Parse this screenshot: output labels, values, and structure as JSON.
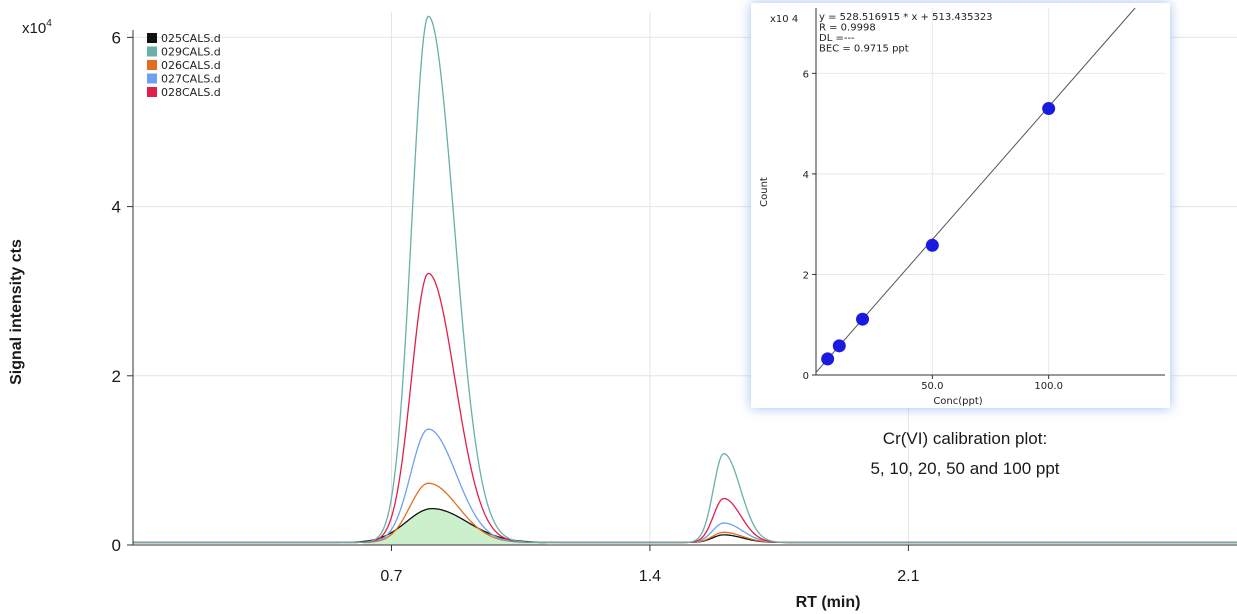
{
  "chart_data": [
    {
      "type": "line",
      "xlabel": "RT (min)",
      "ylabel": "Signal intensity cts",
      "y_multiplier": "x10",
      "y_multiplier_exponent": "4",
      "xlim": [
        0.0,
        2.99
      ],
      "ylim": [
        0,
        6.3
      ],
      "xticks": [
        0.7,
        1.4,
        2.1
      ],
      "xtick_labels": [
        "0.7",
        "1.4",
        "2.1"
      ],
      "yticks": [
        0,
        2,
        4,
        6
      ],
      "ytick_labels": [
        "0",
        "2",
        "4",
        "6"
      ],
      "grid": true,
      "legend_position": "top-left",
      "baseline": 0.03,
      "series": [
        {
          "name": "025CALS.d",
          "color": "#111111",
          "peaks": [
            {
              "rt": 0.81,
              "height": 0.4,
              "sigma_left": 0.07,
              "sigma_right": 0.095
            },
            {
              "rt": 1.6,
              "height": 0.09,
              "sigma_left": 0.03,
              "sigma_right": 0.05
            }
          ],
          "shaded": true,
          "shade_color": "#ccf0cc"
        },
        {
          "name": "029CALS.d",
          "color": "#6aafa8",
          "peaks": [
            {
              "rt": 0.8,
              "height": 6.22,
              "sigma_left": 0.045,
              "sigma_right": 0.07
            },
            {
              "rt": 1.6,
              "height": 1.05,
              "sigma_left": 0.028,
              "sigma_right": 0.045
            }
          ]
        },
        {
          "name": "026CALS.d",
          "color": "#e07020",
          "peaks": [
            {
              "rt": 0.8,
              "height": 0.7,
              "sigma_left": 0.05,
              "sigma_right": 0.08
            },
            {
              "rt": 1.6,
              "height": 0.12,
              "sigma_left": 0.03,
              "sigma_right": 0.05
            }
          ]
        },
        {
          "name": "027CALS.d",
          "color": "#6fa0f0",
          "peaks": [
            {
              "rt": 0.8,
              "height": 1.34,
              "sigma_left": 0.048,
              "sigma_right": 0.075
            },
            {
              "rt": 1.6,
              "height": 0.23,
              "sigma_left": 0.03,
              "sigma_right": 0.05
            }
          ]
        },
        {
          "name": "028CALS.d",
          "color": "#e0204a",
          "peaks": [
            {
              "rt": 0.8,
              "height": 3.18,
              "sigma_left": 0.046,
              "sigma_right": 0.072
            },
            {
              "rt": 1.6,
              "height": 0.52,
              "sigma_left": 0.028,
              "sigma_right": 0.046
            }
          ]
        }
      ]
    },
    {
      "type": "scatter",
      "title": "",
      "xlabel": "Conc(ppt)",
      "ylabel": "Count",
      "y_multiplier": "x10 4",
      "xlim": [
        0,
        150
      ],
      "ylim": [
        0,
        7.3
      ],
      "xticks": [
        50,
        100
      ],
      "xtick_labels": [
        "50.0",
        "100.0"
      ],
      "yticks": [
        0,
        2,
        4,
        6
      ],
      "ytick_labels": [
        "0",
        "2",
        "4",
        "6"
      ],
      "grid": true,
      "annotations": [
        "y = 528.516915 * x  + 513.435323",
        "R =  0.9998",
        "DL =---",
        "BEC = 0.9715 ppt"
      ],
      "fit": {
        "slope": 528.516915,
        "intercept": 513.435323
      },
      "x": [
        5,
        10,
        20,
        50,
        100
      ],
      "y": [
        0.32,
        0.58,
        1.11,
        2.58,
        5.3
      ],
      "point_color": "#1a1ae0",
      "line_color": "#555555"
    }
  ],
  "inset_caption": [
    "Cr(VI) calibration plot:",
    "5, 10, 20, 50 and 100 ppt"
  ],
  "colors": {
    "grid": "#e4e4e4",
    "axis": "#333333",
    "inset_shadow": "#9fbdf2"
  }
}
